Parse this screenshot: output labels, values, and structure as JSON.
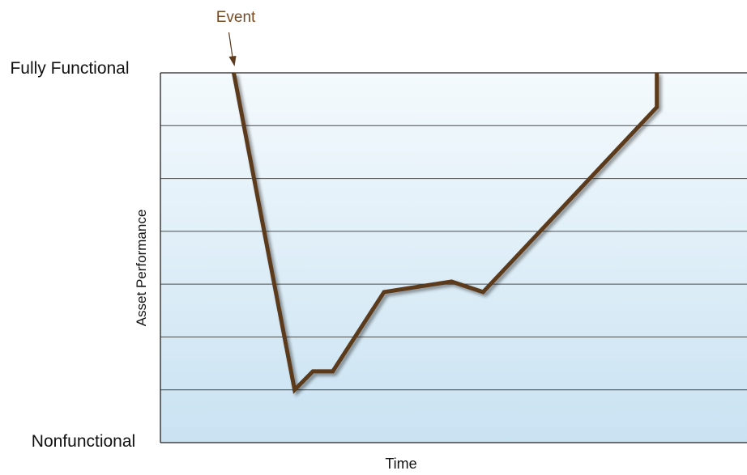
{
  "chart_data": {
    "type": "line",
    "xlabel": "Time",
    "ylabel": "Asset Performance",
    "y_tick_labels": {
      "top": "Fully Functional",
      "bottom": "Nonfunctional"
    },
    "annotation": {
      "text": "Event",
      "x": 1.0
    },
    "xlim": [
      0,
      8
    ],
    "ylim": [
      0,
      7
    ],
    "grid": true,
    "series": [
      {
        "color": "#5b3a1e",
        "points": [
          {
            "x": 1.0,
            "y": 7.0
          },
          {
            "x": 1.83,
            "y": 1.0
          },
          {
            "x": 2.08,
            "y": 1.35
          },
          {
            "x": 2.35,
            "y": 1.35
          },
          {
            "x": 3.05,
            "y": 2.85
          },
          {
            "x": 3.97,
            "y": 3.05
          },
          {
            "x": 4.4,
            "y": 2.85
          },
          {
            "x": 6.77,
            "y": 6.35
          },
          {
            "x": 6.77,
            "y": 7.0
          }
        ]
      }
    ],
    "colors": {
      "line": "#5b3a1e",
      "shadow": "#000000",
      "event": "#7a4a22",
      "grid": "#4a4a4a",
      "bg_top": "#f4fafd",
      "bg_bottom": "#c9e2f2"
    }
  }
}
